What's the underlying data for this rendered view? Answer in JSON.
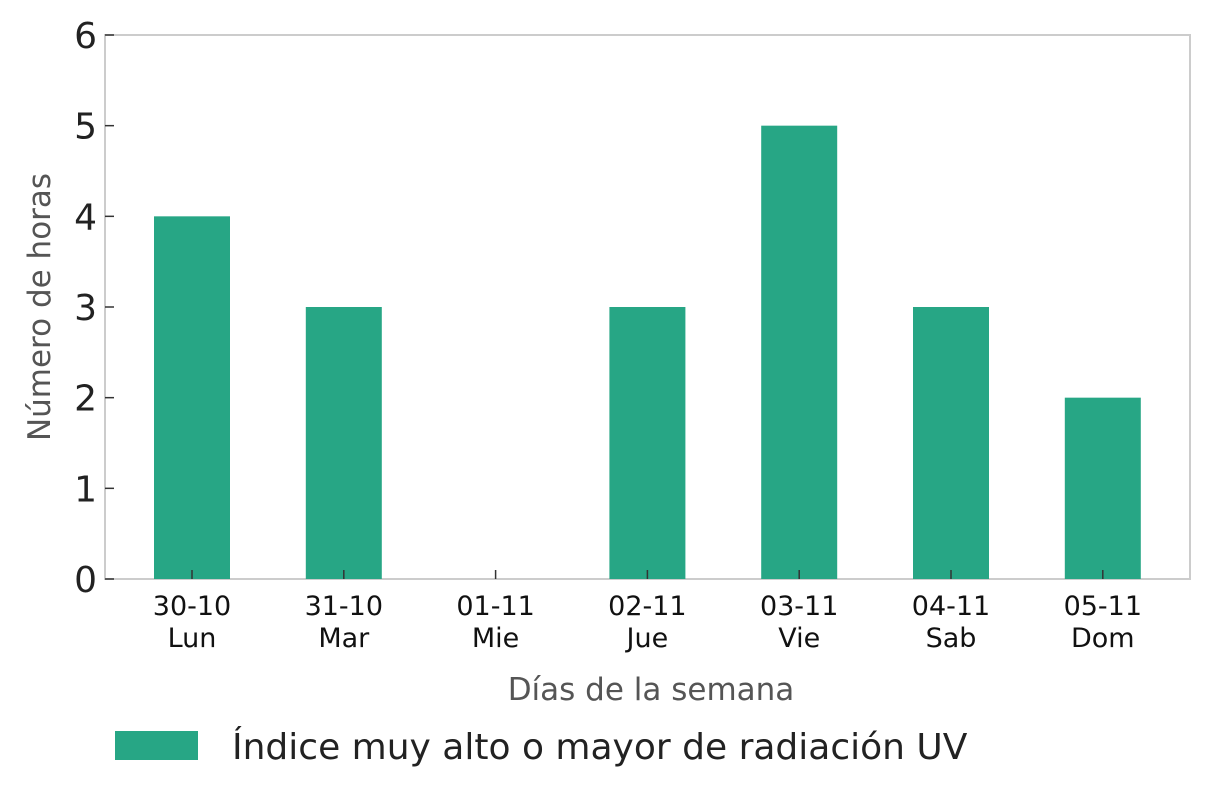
{
  "chart_data": {
    "type": "bar",
    "categories": [
      [
        "30-10",
        "Lun"
      ],
      [
        "31-10",
        "Mar"
      ],
      [
        "01-11",
        "Mie"
      ],
      [
        "02-11",
        "Jue"
      ],
      [
        "03-11",
        "Vie"
      ],
      [
        "04-11",
        "Sab"
      ],
      [
        "05-11",
        "Dom"
      ]
    ],
    "series": [
      {
        "name": "Índice muy alto o mayor de radiación UV",
        "values": [
          4,
          3,
          0,
          3,
          5,
          3,
          2
        ],
        "color": "#27a685"
      }
    ],
    "title": "",
    "xlabel": "Días de la semana",
    "ylabel": "Número de horas",
    "ylim": [
      0,
      6
    ],
    "yticks": [
      "0",
      "1",
      "2",
      "3",
      "4",
      "5",
      "6"
    ],
    "grid": false,
    "legend_position": "bottom"
  }
}
